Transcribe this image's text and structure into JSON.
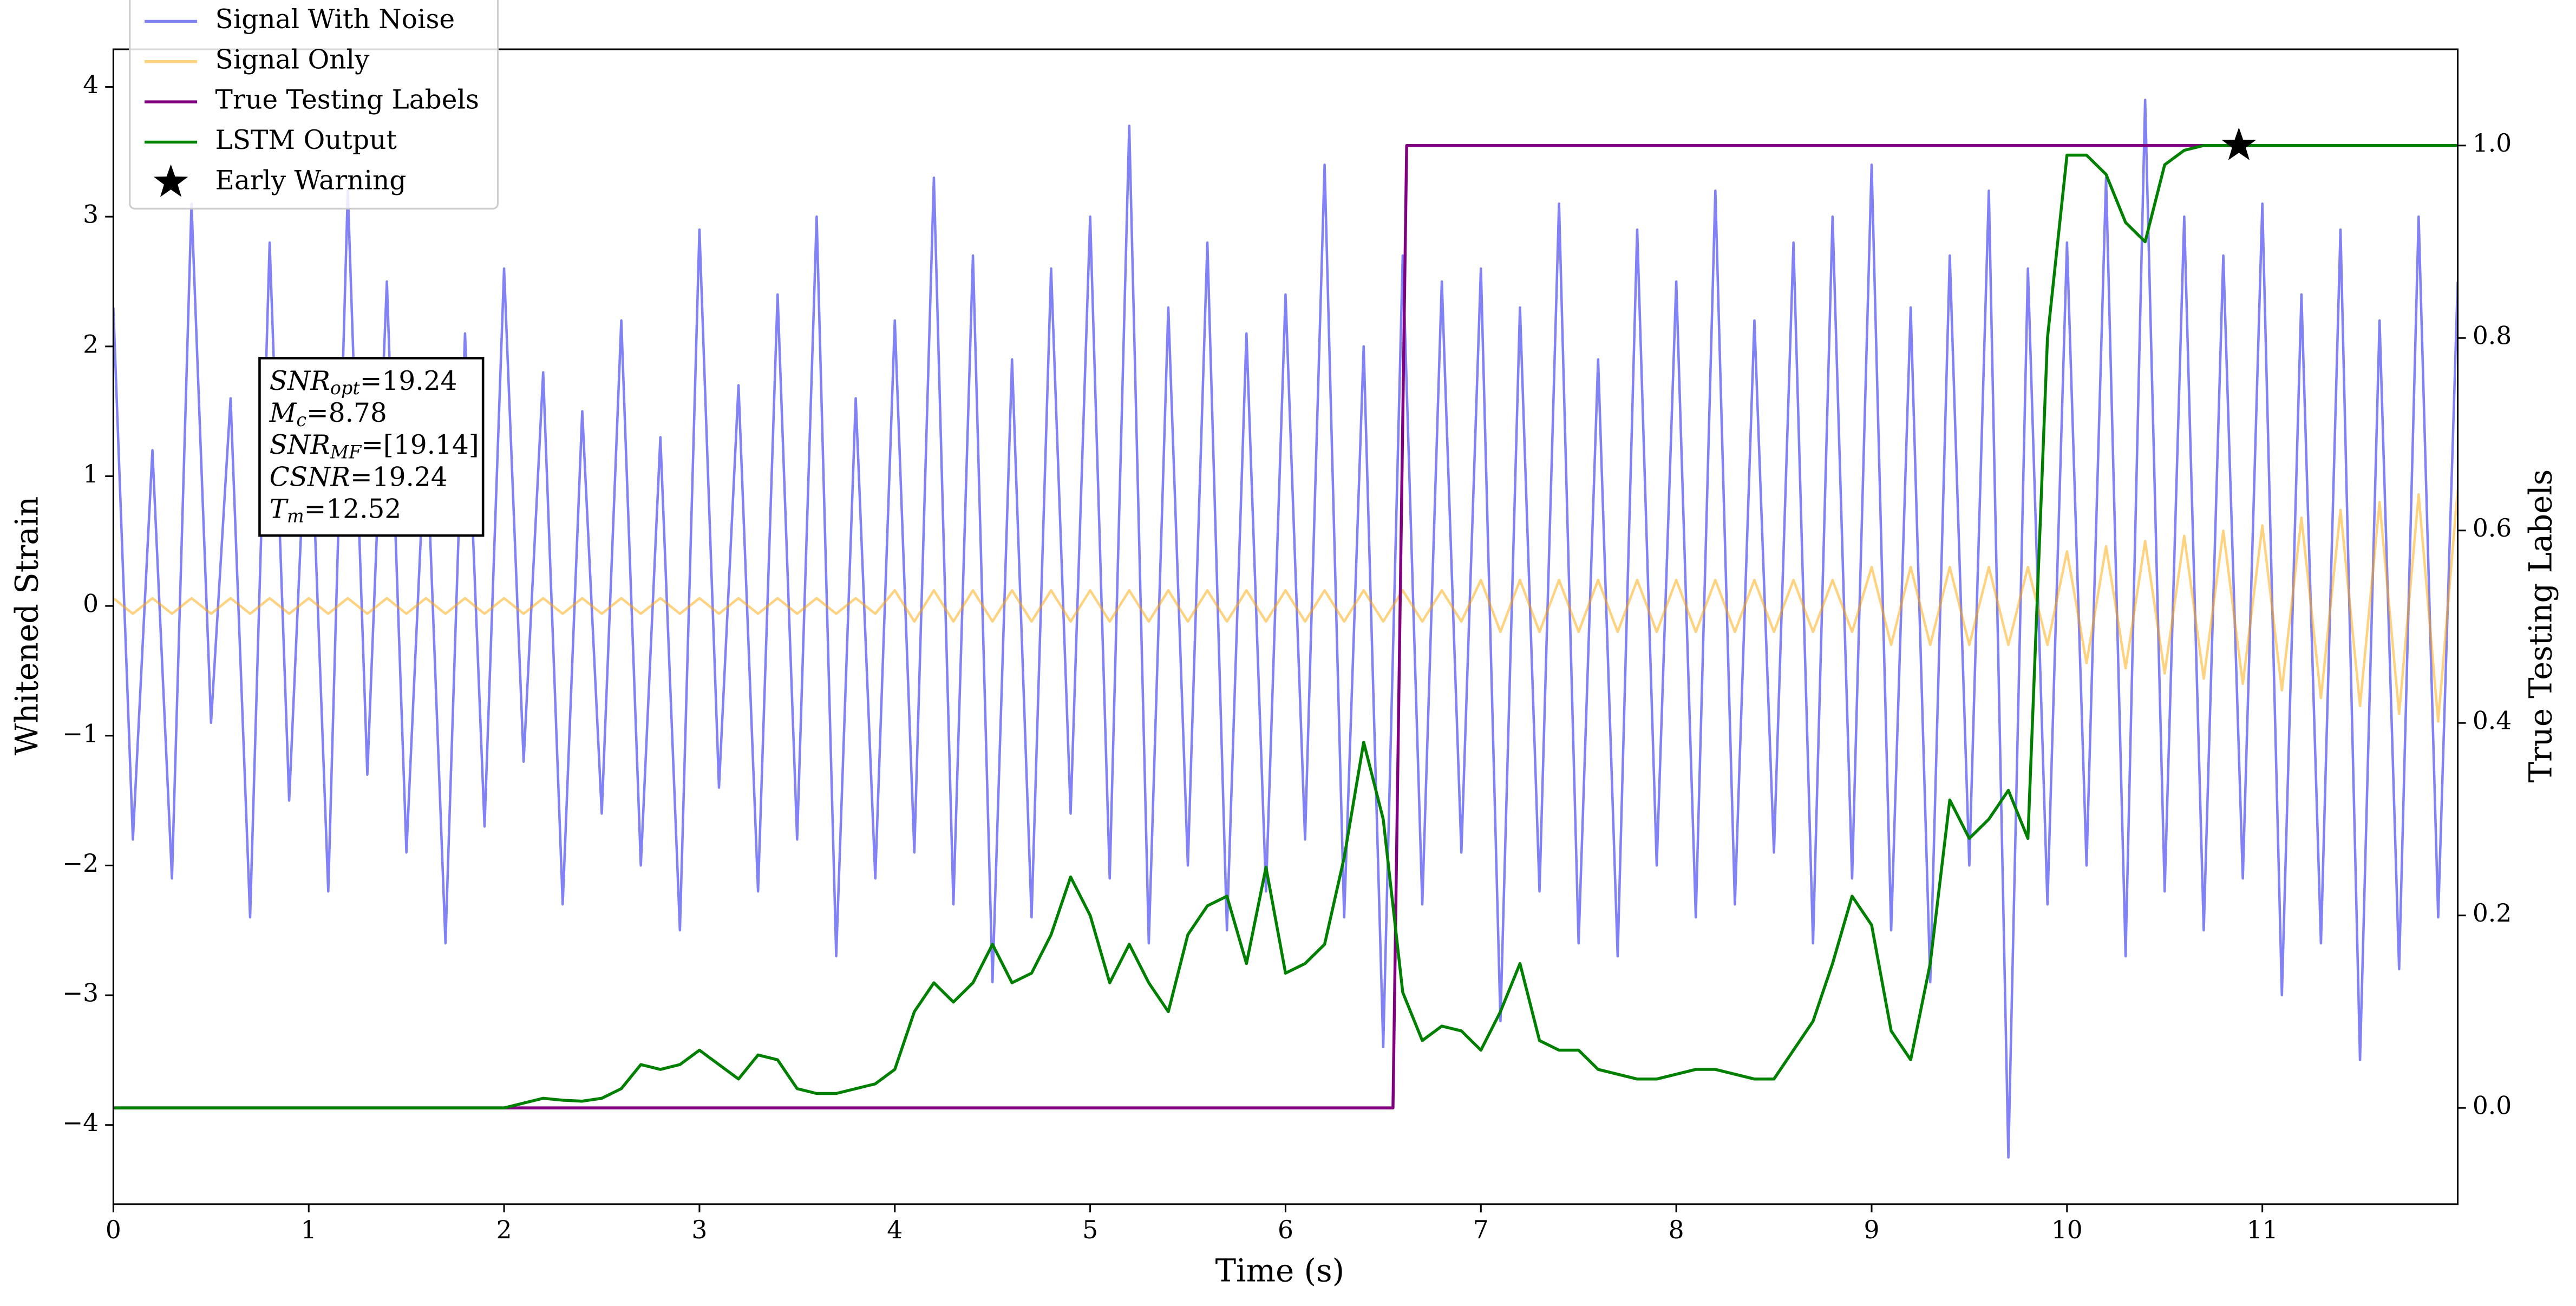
{
  "chart_data": {
    "type": "line",
    "x_label": "Time (s)",
    "y_label": "Whitened Strain",
    "y2_label": "True Testing Labels",
    "xlim": [
      0,
      12
    ],
    "ylim": [
      -4.61,
      4.29
    ],
    "y2lim": [
      -0.1,
      1.1
    ],
    "xticks": [
      0,
      1,
      2,
      3,
      4,
      5,
      6,
      7,
      8,
      9,
      10,
      11
    ],
    "yticks": [
      {
        "value": -4,
        "label": "−4"
      },
      {
        "value": -3,
        "label": "−3"
      },
      {
        "value": -2,
        "label": "−2"
      },
      {
        "value": -1,
        "label": "−1"
      },
      0,
      1,
      2,
      3,
      4
    ],
    "y2ticks": [
      {
        "value": 0,
        "label": "0.0"
      },
      {
        "value": 0.2,
        "label": "0.2"
      },
      {
        "value": 0.4,
        "label": "0.4"
      },
      {
        "value": 0.6,
        "label": "0.6"
      },
      {
        "value": 0.8,
        "label": "0.8"
      },
      {
        "value": 1,
        "label": "1.0"
      }
    ],
    "legend": "upper left",
    "x": [
      0,
      0.1,
      0.2,
      0.3,
      0.4,
      0.5,
      0.6,
      0.7,
      0.8,
      0.9,
      1,
      1.1,
      1.2,
      1.3,
      1.4,
      1.5,
      1.6,
      1.7,
      1.8,
      1.9,
      2,
      2.1,
      2.2,
      2.3,
      2.4,
      2.5,
      2.6,
      2.7,
      2.8,
      2.9,
      3,
      3.1,
      3.2,
      3.3,
      3.4,
      3.5,
      3.6,
      3.7,
      3.8,
      3.9,
      4,
      4.1,
      4.2,
      4.3,
      4.4,
      4.5,
      4.6,
      4.7,
      4.8,
      4.9,
      5,
      5.1,
      5.2,
      5.3,
      5.4,
      5.5,
      5.6,
      5.7,
      5.8,
      5.9,
      6,
      6.1,
      6.2,
      6.3,
      6.4,
      6.5,
      6.6,
      6.7,
      6.8,
      6.9,
      7,
      7.1,
      7.2,
      7.3,
      7.4,
      7.5,
      7.6,
      7.7,
      7.8,
      7.9,
      8,
      8.1,
      8.2,
      8.3,
      8.4,
      8.5,
      8.6,
      8.7,
      8.8,
      8.9,
      9,
      9.1,
      9.2,
      9.3,
      9.4,
      9.5,
      9.6,
      9.7,
      9.8,
      9.9,
      10,
      10.1,
      10.2,
      10.3,
      10.4,
      10.5,
      10.6,
      10.7,
      10.8,
      10.9,
      11,
      11.1,
      11.2,
      11.3,
      11.4,
      11.5,
      11.6,
      11.7,
      11.8,
      11.9,
      12
    ],
    "series": [
      {
        "name": "Signal With Noise",
        "color": "#7b7bf7",
        "opacity": 0.95,
        "values": [
          2.3,
          -1.8,
          1.2,
          -2.1,
          3.1,
          -0.9,
          1.6,
          -2.4,
          2.8,
          -1.5,
          1.9,
          -2.2,
          3.2,
          -1.3,
          2.5,
          -1.9,
          1.4,
          -2.6,
          2.1,
          -1.7,
          2.6,
          -1.2,
          1.8,
          -2.3,
          1.5,
          -1.6,
          2.2,
          -2.0,
          1.3,
          -2.5,
          2.9,
          -1.4,
          1.7,
          -2.2,
          2.4,
          -1.8,
          3.0,
          -2.7,
          1.6,
          -2.1,
          2.2,
          -1.9,
          3.3,
          -2.3,
          2.7,
          -2.9,
          1.9,
          -2.4,
          2.6,
          -1.6,
          3.0,
          -2.1,
          3.7,
          -2.6,
          2.3,
          -2.0,
          2.8,
          -2.5,
          2.1,
          -2.2,
          2.4,
          -1.8,
          3.4,
          -2.4,
          2.0,
          -3.4,
          2.7,
          -2.3,
          2.5,
          -1.9,
          2.6,
          -3.2,
          2.3,
          -2.2,
          3.1,
          -2.6,
          1.9,
          -2.7,
          2.9,
          -2.0,
          2.5,
          -2.4,
          3.2,
          -2.3,
          2.2,
          -1.9,
          2.8,
          -2.6,
          3.0,
          -2.1,
          3.4,
          -2.5,
          2.3,
          -2.9,
          2.7,
          -2.0,
          3.2,
          -4.25,
          2.6,
          -2.3,
          2.8,
          -2.0,
          3.3,
          -2.7,
          3.9,
          -2.2,
          3.0,
          -2.5,
          2.7,
          -2.1,
          3.1,
          -3.0,
          2.4,
          -2.6,
          2.9,
          -3.5,
          2.2,
          -2.8,
          3.0,
          -2.4,
          2.5
        ]
      },
      {
        "name": "Signal Only",
        "color": "#ffa500",
        "opacity": 0.5,
        "values": [
          0.06,
          -0.06,
          0.06,
          -0.06,
          0.06,
          -0.06,
          0.06,
          -0.06,
          0.06,
          -0.06,
          0.06,
          -0.06,
          0.06,
          -0.06,
          0.06,
          -0.06,
          0.06,
          -0.06,
          0.06,
          -0.06,
          0.06,
          -0.06,
          0.06,
          -0.06,
          0.06,
          -0.06,
          0.06,
          -0.06,
          0.06,
          -0.06,
          0.06,
          -0.06,
          0.06,
          -0.06,
          0.06,
          -0.06,
          0.06,
          -0.06,
          0.06,
          -0.06,
          0.12,
          -0.12,
          0.12,
          -0.12,
          0.12,
          -0.12,
          0.12,
          -0.12,
          0.12,
          -0.12,
          0.12,
          -0.12,
          0.12,
          -0.12,
          0.12,
          -0.12,
          0.12,
          -0.12,
          0.12,
          -0.12,
          0.12,
          -0.12,
          0.12,
          -0.12,
          0.12,
          -0.12,
          0.12,
          -0.12,
          0.12,
          -0.12,
          0.2,
          -0.2,
          0.2,
          -0.2,
          0.2,
          -0.2,
          0.2,
          -0.2,
          0.2,
          -0.2,
          0.2,
          -0.2,
          0.2,
          -0.2,
          0.2,
          -0.2,
          0.2,
          -0.2,
          0.2,
          -0.2,
          0.3,
          -0.3,
          0.3,
          -0.3,
          0.3,
          -0.3,
          0.3,
          -0.3,
          0.3,
          -0.3,
          0.42,
          -0.44,
          0.46,
          -0.48,
          0.5,
          -0.52,
          0.54,
          -0.56,
          0.58,
          -0.6,
          0.62,
          -0.65,
          0.68,
          -0.71,
          0.74,
          -0.77,
          0.8,
          -0.83,
          0.86,
          -0.89,
          0.9
        ]
      },
      {
        "name": "True Testing Labels",
        "color": "purple",
        "axis": "y2",
        "opacity": 1,
        "x": [
          0,
          6.55,
          6.62,
          12
        ],
        "values": [
          0,
          0,
          1,
          1
        ]
      },
      {
        "name": "LSTM Output",
        "color": "green",
        "axis": "y2",
        "opacity": 1,
        "values": [
          0,
          0,
          0,
          0,
          0,
          0,
          0,
          0,
          0,
          0,
          0,
          0,
          0,
          0,
          0,
          0,
          0,
          0,
          0,
          0,
          0,
          0.005,
          0.01,
          0.008,
          0.007,
          0.01,
          0.02,
          0.045,
          0.04,
          0.045,
          0.06,
          0.045,
          0.03,
          0.055,
          0.05,
          0.02,
          0.015,
          0.015,
          0.02,
          0.025,
          0.04,
          0.1,
          0.13,
          0.11,
          0.13,
          0.17,
          0.13,
          0.14,
          0.18,
          0.24,
          0.2,
          0.13,
          0.17,
          0.13,
          0.1,
          0.18,
          0.21,
          0.22,
          0.15,
          0.25,
          0.14,
          0.15,
          0.17,
          0.26,
          0.38,
          0.3,
          0.12,
          0.07,
          0.085,
          0.08,
          0.06,
          0.1,
          0.15,
          0.07,
          0.06,
          0.06,
          0.04,
          0.035,
          0.03,
          0.03,
          0.035,
          0.04,
          0.04,
          0.035,
          0.03,
          0.03,
          0.06,
          0.09,
          0.15,
          0.22,
          0.19,
          0.08,
          0.05,
          0.15,
          0.32,
          0.28,
          0.3,
          0.33,
          0.28,
          0.8,
          0.99,
          0.99,
          0.97,
          0.92,
          0.9,
          0.98,
          0.995,
          1,
          1,
          1,
          1,
          1,
          1,
          1,
          1,
          1,
          1,
          1,
          1,
          1,
          1
        ]
      }
    ],
    "markers": [
      {
        "name": "Early Warning",
        "x": 10.88,
        "y": 1,
        "axis": "y2",
        "color": "black"
      }
    ],
    "annotation": [
      {
        "var": "SNR",
        "sub": "opt",
        "text": "=19.24"
      },
      {
        "var": "M",
        "sub": "c",
        "text": "=8.78"
      },
      {
        "var": "SNR",
        "sub": "MF",
        "text": "=[19.14]"
      },
      {
        "var": "CSNR",
        "text": "=19.24"
      },
      {
        "var": "T",
        "sub": "m",
        "text": "=12.52"
      }
    ]
  }
}
